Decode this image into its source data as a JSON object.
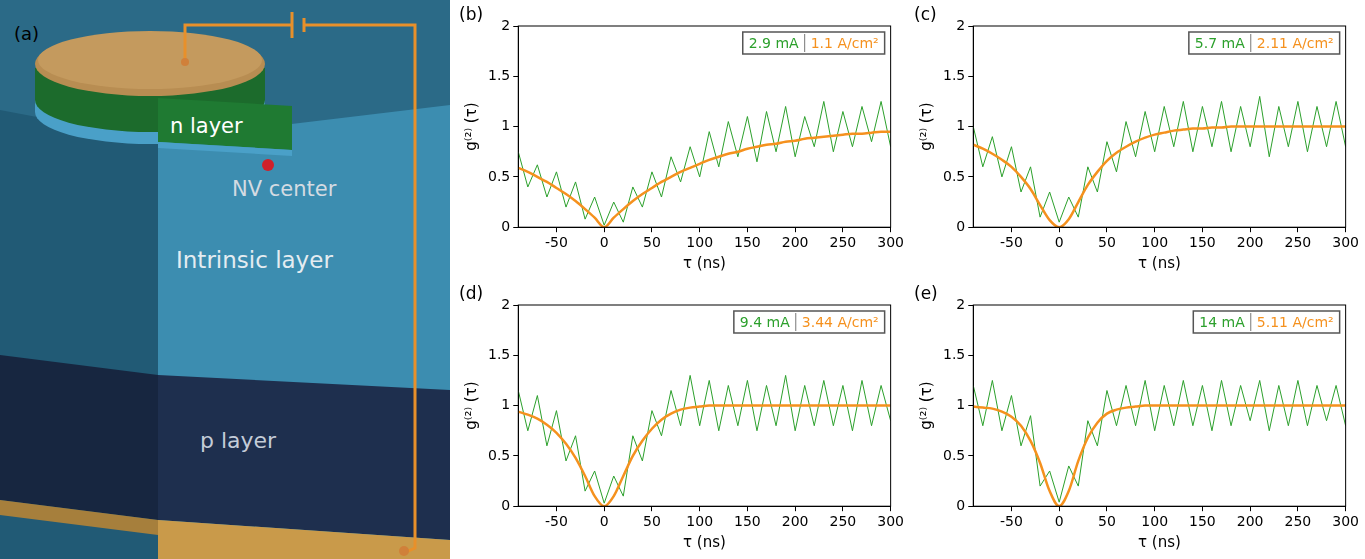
{
  "diagram": {
    "panel": "(a)",
    "labels": {
      "n_layer": "n layer",
      "nv_center": "NV center",
      "intrinsic": "Intrinsic layer",
      "p_layer": "p layer"
    }
  },
  "chart_data": [
    {
      "type": "line",
      "title": "(b)",
      "annotations": [
        "2.9 mA",
        "1.1 A/cm²"
      ],
      "x_label": "τ (ns)",
      "y_label": "g⁽²⁾ (τ)",
      "grid": false,
      "xlim": [
        -90,
        300
      ],
      "xticks": [
        -50,
        0,
        50,
        100,
        150,
        200,
        250,
        300
      ],
      "ylim": [
        0,
        2
      ],
      "yticks": [
        0,
        0.5,
        1,
        1.5,
        2
      ],
      "x": [
        -90,
        -80,
        -70,
        -60,
        -50,
        -40,
        -30,
        -20,
        -10,
        0,
        10,
        20,
        30,
        40,
        50,
        60,
        70,
        80,
        90,
        100,
        110,
        120,
        130,
        140,
        150,
        160,
        170,
        180,
        190,
        200,
        210,
        220,
        230,
        240,
        250,
        260,
        270,
        280,
        290,
        300
      ],
      "series": [
        {
          "color": "#2ca02c",
          "values": [
            0.75,
            0.4,
            0.62,
            0.3,
            0.55,
            0.2,
            0.45,
            0.08,
            0.3,
            0.02,
            0.25,
            0.05,
            0.4,
            0.2,
            0.55,
            0.3,
            0.7,
            0.45,
            0.8,
            0.5,
            0.95,
            0.6,
            1.05,
            0.7,
            1.1,
            0.65,
            1.15,
            0.75,
            1.2,
            0.7,
            1.1,
            0.8,
            1.25,
            0.75,
            1.15,
            0.8,
            1.2,
            0.85,
            1.25,
            0.8
          ]
        },
        {
          "color": "#f5911e",
          "values": [
            0.59,
            0.55,
            0.5,
            0.45,
            0.39,
            0.33,
            0.26,
            0.18,
            0.095,
            0,
            0.095,
            0.18,
            0.26,
            0.33,
            0.39,
            0.45,
            0.5,
            0.55,
            0.59,
            0.63,
            0.67,
            0.7,
            0.73,
            0.75,
            0.78,
            0.8,
            0.82,
            0.83,
            0.85,
            0.86,
            0.88,
            0.89,
            0.9,
            0.91,
            0.92,
            0.93,
            0.93,
            0.94,
            0.95,
            0.95
          ]
        }
      ]
    },
    {
      "type": "line",
      "title": "(c)",
      "annotations": [
        "5.7 mA",
        "2.11 A/cm²"
      ],
      "x_label": "τ (ns)",
      "y_label": "g⁽²⁾ (τ)",
      "grid": false,
      "xlim": [
        -90,
        300
      ],
      "xticks": [
        -50,
        0,
        50,
        100,
        150,
        200,
        250,
        300
      ],
      "ylim": [
        0,
        2
      ],
      "yticks": [
        0,
        0.5,
        1,
        1.5,
        2
      ],
      "x": [
        -90,
        -80,
        -70,
        -60,
        -50,
        -40,
        -30,
        -20,
        -10,
        0,
        10,
        20,
        30,
        40,
        50,
        60,
        70,
        80,
        90,
        100,
        110,
        120,
        130,
        140,
        150,
        160,
        170,
        180,
        190,
        200,
        210,
        220,
        230,
        240,
        250,
        260,
        270,
        280,
        290,
        300
      ],
      "series": [
        {
          "color": "#2ca02c",
          "values": [
            1.0,
            0.6,
            0.9,
            0.5,
            0.8,
            0.35,
            0.6,
            0.1,
            0.35,
            0.05,
            0.3,
            0.1,
            0.6,
            0.35,
            0.85,
            0.55,
            1.05,
            0.7,
            1.15,
            0.75,
            1.2,
            0.8,
            1.25,
            0.75,
            1.2,
            0.8,
            1.25,
            0.75,
            1.2,
            0.8,
            1.3,
            0.7,
            1.2,
            0.8,
            1.25,
            0.75,
            1.2,
            0.8,
            1.25,
            0.8
          ]
        },
        {
          "color": "#f5911e",
          "values": [
            0.82,
            0.78,
            0.73,
            0.67,
            0.6,
            0.5,
            0.38,
            0.22,
            0.07,
            0,
            0.08,
            0.25,
            0.42,
            0.55,
            0.66,
            0.74,
            0.8,
            0.85,
            0.89,
            0.92,
            0.94,
            0.96,
            0.97,
            0.98,
            0.98,
            0.99,
            0.99,
            1,
            1,
            1,
            1,
            1,
            1,
            1,
            1,
            1,
            1,
            1,
            1,
            1
          ]
        }
      ]
    },
    {
      "type": "line",
      "title": "(d)",
      "annotations": [
        "9.4 mA",
        "3.44 A/cm²"
      ],
      "x_label": "τ (ns)",
      "y_label": "g⁽²⁾ (τ)",
      "grid": false,
      "xlim": [
        -90,
        300
      ],
      "xticks": [
        -50,
        0,
        50,
        100,
        150,
        200,
        250,
        300
      ],
      "ylim": [
        0,
        2
      ],
      "yticks": [
        0,
        0.5,
        1,
        1.5,
        2
      ],
      "x": [
        -90,
        -80,
        -70,
        -60,
        -50,
        -40,
        -30,
        -20,
        -10,
        0,
        10,
        20,
        30,
        40,
        50,
        60,
        70,
        80,
        90,
        100,
        110,
        120,
        130,
        140,
        150,
        160,
        170,
        180,
        190,
        200,
        210,
        220,
        230,
        240,
        250,
        260,
        270,
        280,
        290,
        300
      ],
      "series": [
        {
          "color": "#2ca02c",
          "values": [
            1.15,
            0.75,
            1.1,
            0.6,
            0.95,
            0.45,
            0.7,
            0.15,
            0.35,
            0.03,
            0.3,
            0.1,
            0.7,
            0.45,
            0.95,
            0.7,
            1.15,
            0.8,
            1.3,
            0.8,
            1.25,
            0.75,
            1.2,
            0.8,
            1.25,
            0.75,
            1.2,
            0.8,
            1.3,
            0.75,
            1.2,
            0.8,
            1.25,
            0.8,
            1.2,
            0.75,
            1.25,
            0.8,
            1.2,
            0.85
          ]
        },
        {
          "color": "#f5911e",
          "values": [
            0.94,
            0.91,
            0.87,
            0.81,
            0.73,
            0.62,
            0.48,
            0.3,
            0.1,
            0,
            0.1,
            0.3,
            0.5,
            0.65,
            0.77,
            0.86,
            0.92,
            0.96,
            0.98,
            0.99,
            1,
            1,
            1,
            1,
            1,
            1,
            1,
            1,
            1,
            1,
            1,
            1,
            1,
            1,
            1,
            1,
            1,
            1,
            1,
            1
          ]
        }
      ]
    },
    {
      "type": "line",
      "title": "(e)",
      "annotations": [
        "14 mA",
        "5.11 A/cm²"
      ],
      "x_label": "τ (ns)",
      "y_label": "g⁽²⁾ (τ)",
      "grid": false,
      "xlim": [
        -90,
        300
      ],
      "xticks": [
        -50,
        0,
        50,
        100,
        150,
        200,
        250,
        300
      ],
      "ylim": [
        0,
        2
      ],
      "yticks": [
        0,
        0.5,
        1,
        1.5,
        2
      ],
      "x": [
        -90,
        -80,
        -70,
        -60,
        -50,
        -40,
        -30,
        -20,
        -10,
        0,
        10,
        20,
        30,
        40,
        50,
        60,
        70,
        80,
        90,
        100,
        110,
        120,
        130,
        140,
        150,
        160,
        170,
        180,
        190,
        200,
        210,
        220,
        230,
        240,
        250,
        260,
        270,
        280,
        290,
        300
      ],
      "series": [
        {
          "color": "#2ca02c",
          "values": [
            1.2,
            0.8,
            1.25,
            0.75,
            1.1,
            0.6,
            0.9,
            0.2,
            0.35,
            0.04,
            0.4,
            0.2,
            0.85,
            0.6,
            1.15,
            0.8,
            1.2,
            0.8,
            1.25,
            0.75,
            1.2,
            0.8,
            1.25,
            0.8,
            1.2,
            0.75,
            1.25,
            0.8,
            1.2,
            0.85,
            1.25,
            0.75,
            1.2,
            0.8,
            1.25,
            0.8,
            1.2,
            0.85,
            1.2,
            0.8
          ]
        },
        {
          "color": "#f5911e",
          "values": [
            0.99,
            0.98,
            0.97,
            0.94,
            0.89,
            0.8,
            0.65,
            0.43,
            0.15,
            0,
            0.15,
            0.45,
            0.68,
            0.83,
            0.92,
            0.96,
            0.98,
            0.99,
            1,
            1,
            1,
            1,
            1,
            1,
            1,
            1,
            1,
            1,
            1,
            1,
            1,
            1,
            1,
            1,
            1,
            1,
            1,
            1,
            1,
            1
          ]
        }
      ]
    }
  ]
}
